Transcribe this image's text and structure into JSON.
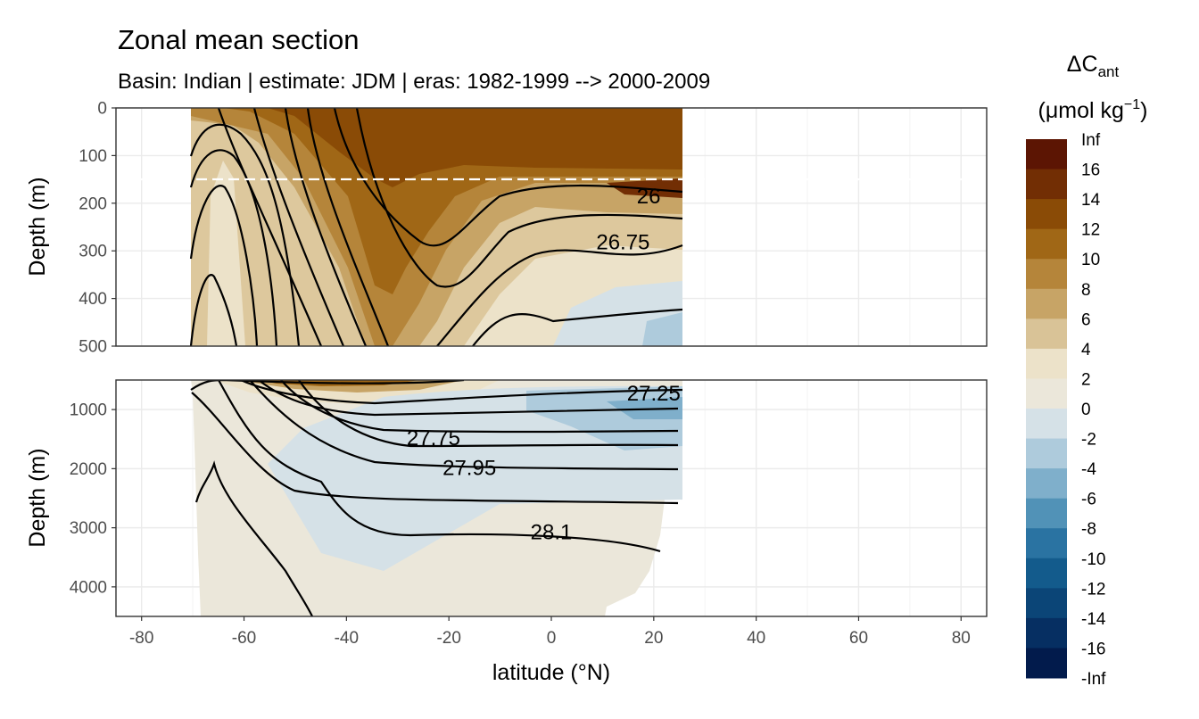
{
  "chart_data": {
    "type": "heatmap",
    "title": "Zonal mean section",
    "subtitle": "Basin: Indian | estimate: JDM  | eras: 1982-1999 --> 2000-2009",
    "xlabel": "latitude (°N)",
    "ylabel": "Depth (m)",
    "x_ticks": [
      "-80",
      "-60",
      "-40",
      "-20",
      "0",
      "20",
      "40",
      "60",
      "80"
    ],
    "xlim": [
      -85,
      85
    ],
    "grid": true,
    "legend": {
      "position": "right",
      "title_main": "ΔC",
      "title_sub": "ant",
      "units_main": "(μmol kg",
      "units_sup": "−1",
      "units_end": ")",
      "labels": [
        "Inf",
        "16",
        "14",
        "12",
        "10",
        "8",
        "6",
        "4",
        "2",
        "0",
        "-2",
        "-4",
        "-6",
        "-8",
        "-10",
        "-12",
        "-14",
        "-16",
        "-Inf"
      ],
      "colors": [
        "#5c1503",
        "#722e04",
        "#8a4b06",
        "#a06716",
        "#b5853a",
        "#c7a466",
        "#d9c397",
        "#ece2c9",
        "#ebe7da",
        "#d5e1e7",
        "#aecbdc",
        "#7fafcb",
        "#5192b7",
        "#2a73a2",
        "#135b8c",
        "#0b4577",
        "#062f62",
        "#021b4c"
      ]
    },
    "panels": [
      {
        "name": "upper",
        "ylim": [
          0,
          500
        ],
        "y_ticks": [
          "0",
          "100",
          "200",
          "300",
          "400",
          "500"
        ],
        "mixed_layer_line_depth": 150,
        "contour_labels": [
          {
            "text": "26",
            "lat": 19,
            "depth": 185
          },
          {
            "text": "26.75",
            "lat": 14,
            "depth": 282
          }
        ],
        "series": [
          {
            "lat": [
              -70,
              -60,
              -50,
              -40,
              -30,
              -20,
              -10,
              0,
              10,
              20,
              25
            ],
            "dcant": [
              5,
              4,
              3,
              6,
              8,
              9,
              9,
              6,
              5,
              4,
              3
            ]
          }
        ]
      },
      {
        "name": "lower",
        "ylim": [
          500,
          4500
        ],
        "y_ticks": [
          "1000",
          "2000",
          "3000",
          "4000"
        ],
        "contour_labels": [
          {
            "text": "27.25",
            "lat": 20,
            "depth": 730
          },
          {
            "text": "27.75",
            "lat": -23,
            "depth": 1480
          },
          {
            "text": "27.95",
            "lat": -16,
            "depth": 1990
          },
          {
            "text": "28.1",
            "lat": 0,
            "depth": 3070
          }
        ],
        "series": [
          {
            "lat": [
              -70,
              -60,
              -50,
              -40,
              -30,
              -20,
              -10,
              0,
              10,
              20,
              25
            ],
            "dcant": [
              1,
              1,
              1,
              1,
              0,
              0,
              1,
              0,
              -2,
              -3,
              -2
            ]
          }
        ]
      }
    ]
  }
}
